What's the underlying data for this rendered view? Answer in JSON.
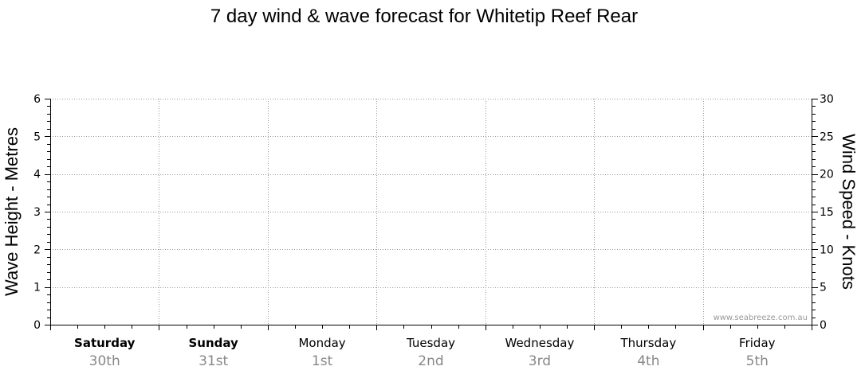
{
  "chart_data": {
    "type": "line",
    "title": "7 day wind & wave forecast for Whitetip Reef Rear",
    "ylabel": "Wave Height - Metres",
    "y2label": "Wind Speed - Knots",
    "ylim": [
      0,
      6
    ],
    "y2lim": [
      0,
      30
    ],
    "yticks": [
      0,
      1,
      2,
      3,
      4,
      5,
      6
    ],
    "y2ticks": [
      0,
      5,
      10,
      15,
      20,
      25,
      30
    ],
    "categories": [
      {
        "day": "Saturday",
        "date": "30th",
        "bold": true
      },
      {
        "day": "Sunday",
        "date": "31st",
        "bold": true
      },
      {
        "day": "Monday",
        "date": "1st",
        "bold": false
      },
      {
        "day": "Tuesday",
        "date": "2nd",
        "bold": false
      },
      {
        "day": "Wednesday",
        "date": "3rd",
        "bold": false
      },
      {
        "day": "Thursday",
        "date": "4th",
        "bold": false
      },
      {
        "day": "Friday",
        "date": "5th",
        "bold": false
      }
    ],
    "series": [],
    "grid": true
  },
  "watermark": "www.seabreeze.com.au",
  "colors": {
    "background": "#ffffff",
    "text": "#000000",
    "date_text": "#888888",
    "axis": "#000000",
    "grid": "#999999",
    "watermark": "#999999"
  }
}
